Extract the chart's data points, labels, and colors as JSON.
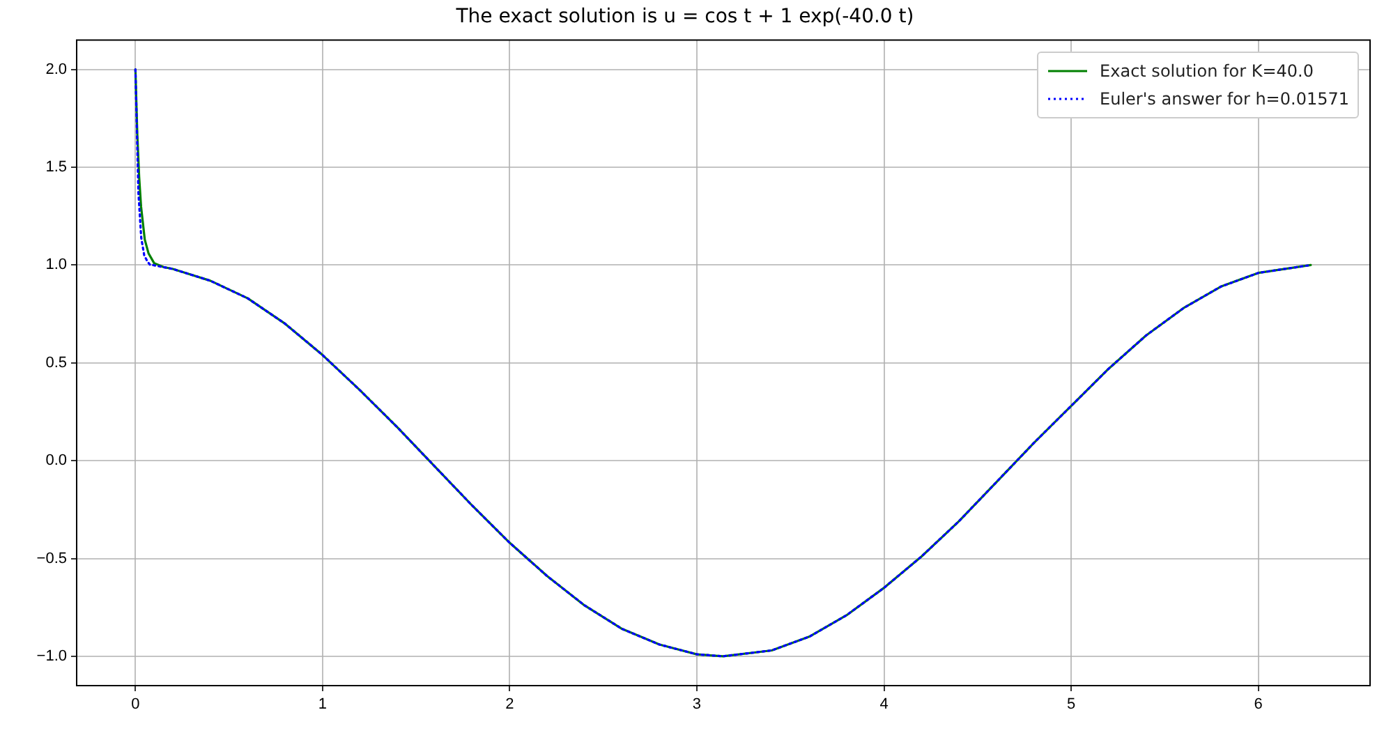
{
  "chart_data": {
    "type": "line",
    "title": "The exact solution is u = cos t + 1 exp(-40.0 t)",
    "series": [
      {
        "name": "Exact solution for K=40.0",
        "color": "#008000",
        "line_style": "solid",
        "x": [
          0,
          0.01,
          0.02,
          0.03,
          0.05,
          0.07,
          0.1,
          0.15,
          0.2,
          0.4,
          0.6,
          0.8,
          1.0,
          1.2,
          1.4,
          1.6,
          1.8,
          2.0,
          2.2,
          2.4,
          2.6,
          2.8,
          3.0,
          3.14,
          3.4,
          3.6,
          3.8,
          4.0,
          4.2,
          4.4,
          4.6,
          4.8,
          5.0,
          5.2,
          5.4,
          5.6,
          5.8,
          6.0,
          6.28
        ],
        "values": [
          2.0,
          1.67,
          1.45,
          1.3,
          1.13,
          1.06,
          1.01,
          0.99,
          0.98,
          0.92,
          0.83,
          0.7,
          0.54,
          0.36,
          0.17,
          -0.03,
          -0.23,
          -0.42,
          -0.59,
          -0.74,
          -0.86,
          -0.94,
          -0.99,
          -1.0,
          -0.97,
          -0.9,
          -0.79,
          -0.65,
          -0.49,
          -0.31,
          -0.11,
          0.09,
          0.28,
          0.47,
          0.64,
          0.78,
          0.89,
          0.96,
          1.0
        ]
      },
      {
        "name": "Euler's answer for h=0.01571",
        "color": "#0000ff",
        "line_style": "dotted",
        "x": [
          0,
          0.016,
          0.031,
          0.047,
          0.063,
          0.079,
          0.094,
          0.2,
          0.4,
          0.6,
          0.8,
          1.0,
          1.2,
          1.4,
          1.6,
          1.8,
          2.0,
          2.2,
          2.4,
          2.6,
          2.8,
          3.0,
          3.14,
          3.4,
          3.6,
          3.8,
          4.0,
          4.2,
          4.4,
          4.6,
          4.8,
          5.0,
          5.2,
          5.4,
          5.6,
          5.8,
          6.0,
          6.28
        ],
        "values": [
          2.0,
          1.37,
          1.14,
          1.05,
          1.02,
          1.0,
          1.0,
          0.98,
          0.92,
          0.83,
          0.7,
          0.54,
          0.36,
          0.17,
          -0.03,
          -0.23,
          -0.42,
          -0.59,
          -0.74,
          -0.86,
          -0.94,
          -0.99,
          -1.0,
          -0.97,
          -0.9,
          -0.79,
          -0.65,
          -0.49,
          -0.31,
          -0.11,
          0.09,
          0.28,
          0.47,
          0.64,
          0.78,
          0.89,
          0.96,
          1.0
        ]
      }
    ],
    "xlim": [
      -0.314,
      6.597
    ],
    "ylim": [
      -1.15,
      2.15
    ],
    "xticks": [
      0,
      1,
      2,
      3,
      4,
      5,
      6
    ],
    "yticks": [
      {
        "value": -1,
        "label": "−1.0"
      },
      {
        "value": -0.5,
        "label": "−0.5"
      },
      {
        "value": 0,
        "label": "0.0"
      },
      {
        "value": 0.5,
        "label": "0.5"
      },
      {
        "value": 1,
        "label": "1.0"
      },
      {
        "value": 1.5,
        "label": "1.5"
      },
      {
        "value": 2,
        "label": "2.0"
      }
    ],
    "grid": true,
    "legend": "top right",
    "marker": "none"
  }
}
